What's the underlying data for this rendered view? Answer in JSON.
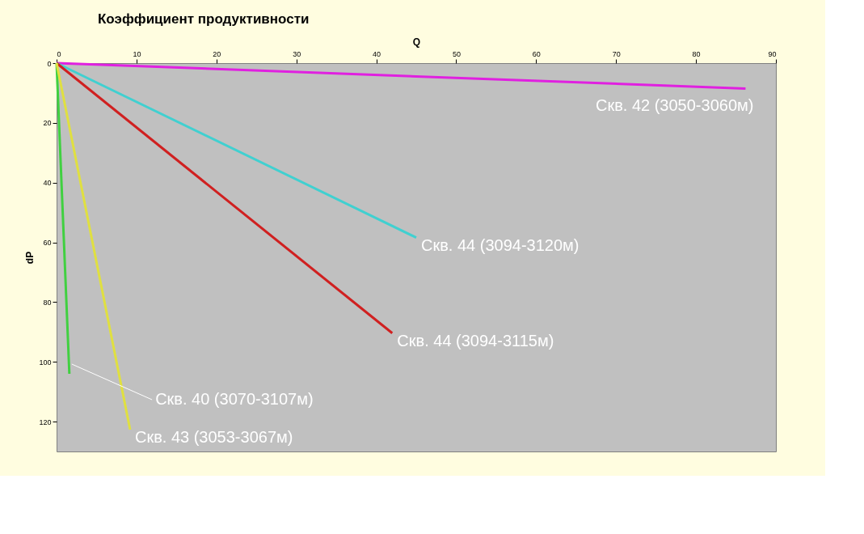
{
  "chart_data": {
    "type": "line",
    "title": "Коэффициент продуктивности",
    "xlabel": "Q",
    "ylabel": "dP",
    "xlim": [
      0,
      90
    ],
    "xticks": [
      0,
      10,
      20,
      30,
      40,
      50,
      60,
      70,
      80,
      90
    ],
    "ylim": [
      130,
      0
    ],
    "yticks": [
      0,
      20,
      40,
      60,
      80,
      100,
      120
    ],
    "grid": false,
    "marker": "none",
    "line_style": "solid",
    "series": [
      {
        "name": "Скв. 42 (3050-3060м)",
        "color": "#e020e0",
        "x": [
          0,
          86.2
        ],
        "values": [
          0,
          8.5
        ]
      },
      {
        "name": "Скв. 44 (3094-3120м)",
        "color": "#40d0d0",
        "x": [
          0,
          45
        ],
        "values": [
          0,
          58.4
        ]
      },
      {
        "name": "Скв. 44 (3094-3115м)",
        "color": "#d02020",
        "x": [
          0,
          42
        ],
        "values": [
          0,
          90.4
        ]
      },
      {
        "name": "Скв. 40 (3070-3107м)",
        "color": "#40d040",
        "x": [
          0,
          1.6
        ],
        "values": [
          0,
          104
        ]
      },
      {
        "name": "Скв. 43 (3053-3067м)",
        "color": "#e0e040",
        "x": [
          0,
          9.2
        ],
        "values": [
          0,
          122.7
        ]
      }
    ]
  }
}
